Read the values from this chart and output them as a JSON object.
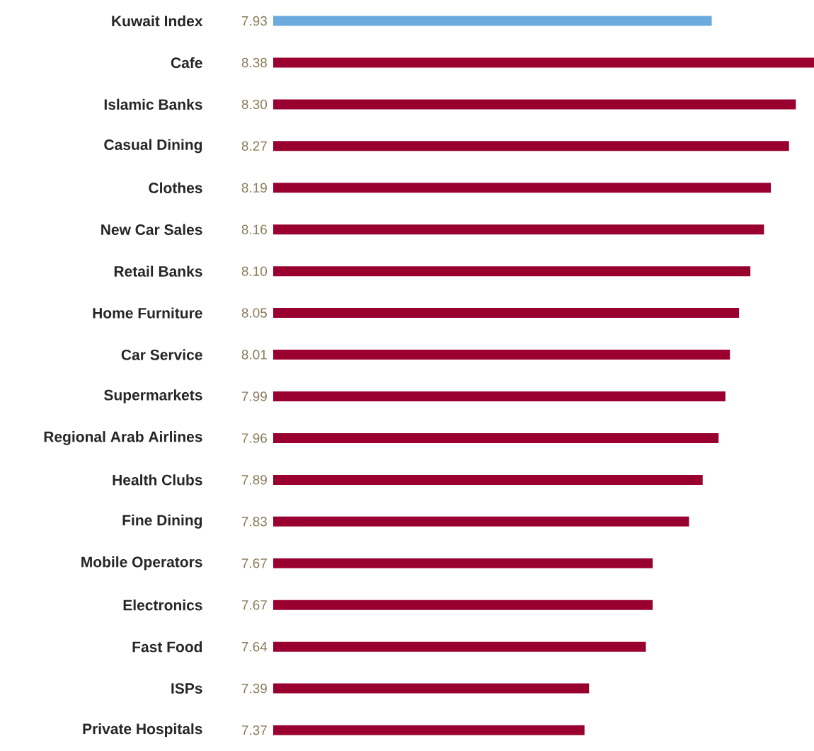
{
  "chart_data": {
    "type": "bar",
    "orientation": "horizontal",
    "categories": [
      "Kuwait Index",
      "Cafe",
      "Islamic Banks",
      "Casual Dining",
      "Clothes",
      "New Car Sales",
      "Retail Banks",
      "Home Furniture",
      "Car Service",
      "Supermarkets",
      "Regional Arab Airlines",
      "Health Clubs",
      "Fine Dining",
      "Mobile Operators",
      "Electronics",
      "Fast Food",
      "ISPs",
      "Private Hospitals"
    ],
    "values": [
      7.93,
      8.38,
      8.3,
      8.27,
      8.19,
      8.16,
      8.1,
      8.05,
      8.01,
      7.99,
      7.96,
      7.89,
      7.83,
      7.67,
      7.67,
      7.64,
      7.39,
      7.37
    ],
    "value_labels": [
      "7.93",
      "8.38",
      "8.30",
      "8.27",
      "8.19",
      "8.16",
      "8.10",
      "8.05",
      "8.01",
      "7.99",
      "7.96",
      "7.89",
      "7.83",
      "7.67",
      "7.67",
      "7.64",
      "7.39",
      "7.37"
    ],
    "colors": [
      "#6aaadc",
      "#990030",
      "#990030",
      "#990030",
      "#990030",
      "#990030",
      "#990030",
      "#990030",
      "#990030",
      "#990030",
      "#990030",
      "#990030",
      "#990030",
      "#990030",
      "#990030",
      "#990030",
      "#990030",
      "#990030"
    ],
    "xlim": [
      6.0,
      8.38
    ],
    "tick_labels": "y"
  }
}
